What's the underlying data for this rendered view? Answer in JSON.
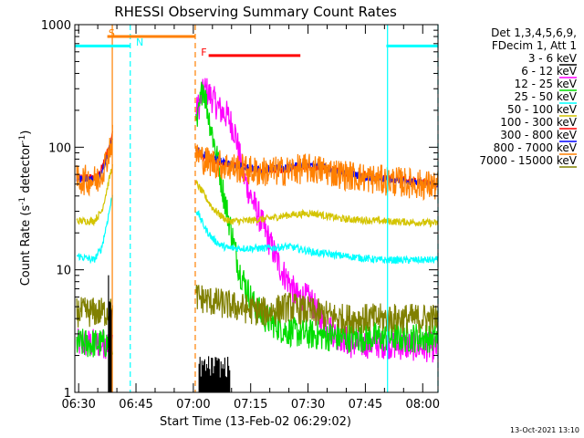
{
  "chart_data": {
    "type": "line",
    "title": "RHESSI Observing Summary Count Rates",
    "xlabel": "Start Time (13-Feb-02 06:29:02)",
    "ylabel": "Count Rate (s",
    "ylabel_sup1": "-1",
    "ylabel_mid": " detector",
    "ylabel_sup2": "-1",
    "ylabel_end": ")",
    "x_unit": "minutes after 06:29:02",
    "y_scale": "log",
    "xlim": [
      0,
      95
    ],
    "ylim": [
      1,
      1000
    ],
    "x_ticks": [
      {
        "value": 1,
        "label": "06:30"
      },
      {
        "value": 16,
        "label": "06:45"
      },
      {
        "value": 31,
        "label": "07:00"
      },
      {
        "value": 46,
        "label": "07:15"
      },
      {
        "value": 61,
        "label": "07:30"
      },
      {
        "value": 76,
        "label": "07:45"
      },
      {
        "value": 91,
        "label": "08:00"
      }
    ],
    "y_ticks": [
      {
        "value": 1,
        "label": "1"
      },
      {
        "value": 10,
        "label": "10"
      },
      {
        "value": 100,
        "label": "100"
      },
      {
        "value": 1000,
        "label": "1000"
      }
    ],
    "legend": {
      "header1": "Det 1,3,4,5,6,9,",
      "header2": "FDecim 1, Att 1",
      "placement": "right",
      "entries": [
        {
          "label": "3 - 6 keV",
          "color": "#000000"
        },
        {
          "label": "6 - 12 keV",
          "color": "#ff00ff"
        },
        {
          "label": "12 - 25 keV",
          "color": "#00dd00"
        },
        {
          "label": "25 - 50 keV",
          "color": "#00ffff"
        },
        {
          "label": "50 - 100 keV",
          "color": "#d4c400"
        },
        {
          "label": "100 - 300 keV",
          "color": "#ff0000"
        },
        {
          "label": "300 - 800 keV",
          "color": "#0000ff"
        },
        {
          "label": "800 - 7000 keV",
          "color": "#ff8000"
        },
        {
          "label": "7000 - 15000 keV",
          "color": "#808000"
        }
      ]
    },
    "flags": [
      {
        "label": "S",
        "color": "#ff8000",
        "x_start": 8.5,
        "x_end": 31.5,
        "y": 800
      },
      {
        "label": "N",
        "color": "#00ffff",
        "x_start": 0,
        "x_end": 14.5,
        "y": 670
      },
      {
        "label": "N",
        "color": "#00ffff",
        "x_start": 81.5,
        "x_end": 95,
        "y": 670
      },
      {
        "label": "F",
        "color": "#ff0000",
        "x_start": 35,
        "x_end": 59,
        "y": 560
      }
    ],
    "flag_text": {
      "s": "S",
      "n": "N",
      "f": "F"
    },
    "vlines": [
      {
        "x": 9.8,
        "color": "#ff8000",
        "style": "solid"
      },
      {
        "x": 31.5,
        "color": "#ff8000",
        "style": "dashed"
      },
      {
        "x": 14.5,
        "color": "#00ffff",
        "style": "dashed"
      },
      {
        "x": 81.8,
        "color": "#00ffff",
        "style": "solid"
      },
      {
        "x": 95,
        "color": "#00ffff",
        "style": "dashed"
      }
    ],
    "series": [
      {
        "name": "6 - 12 keV",
        "color": "#ff00ff",
        "points": [
          [
            0.5,
            2.5
          ],
          [
            9.5,
            2.5
          ],
          [
            32,
            200
          ],
          [
            34,
            300
          ],
          [
            36,
            250
          ],
          [
            38,
            200
          ],
          [
            40,
            180
          ],
          [
            42,
            130
          ],
          [
            44,
            60
          ],
          [
            46,
            40
          ],
          [
            48,
            28
          ],
          [
            50,
            20
          ],
          [
            52,
            14
          ],
          [
            54,
            10
          ],
          [
            56,
            8
          ],
          [
            58,
            6
          ],
          [
            60,
            6
          ],
          [
            62,
            5.5
          ],
          [
            64,
            4
          ],
          [
            66,
            3.5
          ],
          [
            68,
            3
          ],
          [
            70,
            2.8
          ],
          [
            72,
            2.5
          ],
          [
            80,
            2.5
          ],
          [
            95,
            2.3
          ]
        ]
      },
      {
        "name": "12 - 25 keV",
        "color": "#00dd00",
        "points": [
          [
            0.5,
            2.5
          ],
          [
            9.5,
            2.5
          ],
          [
            32,
            150
          ],
          [
            33.5,
            330
          ],
          [
            35,
            180
          ],
          [
            37,
            90
          ],
          [
            39,
            40
          ],
          [
            41,
            20
          ],
          [
            43,
            10
          ],
          [
            45,
            7
          ],
          [
            47,
            5
          ],
          [
            50,
            4
          ],
          [
            55,
            3.2
          ],
          [
            60,
            3
          ],
          [
            70,
            2.8
          ],
          [
            95,
            2.8
          ]
        ]
      },
      {
        "name": "50 - 100 keV",
        "color": "#d4c400",
        "points": [
          [
            0.5,
            25
          ],
          [
            5,
            25
          ],
          [
            7,
            30
          ],
          [
            8,
            40
          ],
          [
            9,
            55
          ],
          [
            9.8,
            70
          ],
          [
            32,
            50
          ],
          [
            34,
            40
          ],
          [
            36,
            32
          ],
          [
            38,
            28
          ],
          [
            40,
            25
          ],
          [
            44,
            25
          ],
          [
            50,
            26
          ],
          [
            56,
            28
          ],
          [
            62,
            29
          ],
          [
            70,
            26
          ],
          [
            80,
            25
          ],
          [
            95,
            24
          ]
        ]
      },
      {
        "name": "25 - 50 keV",
        "color": "#00ffff",
        "points": [
          [
            0.5,
            13
          ],
          [
            5,
            12
          ],
          [
            7,
            15
          ],
          [
            8.5,
            25
          ],
          [
            9.8,
            40
          ],
          [
            32,
            30
          ],
          [
            34,
            22
          ],
          [
            36,
            18
          ],
          [
            38,
            16
          ],
          [
            40,
            15
          ],
          [
            44,
            15
          ],
          [
            50,
            15
          ],
          [
            56,
            15.5
          ],
          [
            62,
            14
          ],
          [
            70,
            13
          ],
          [
            80,
            12
          ],
          [
            95,
            12
          ]
        ]
      },
      {
        "name": "7000 - 15000 keV",
        "color": "#808000",
        "points": [
          [
            0.5,
            4.5
          ],
          [
            9.5,
            4.5
          ],
          [
            32,
            6
          ],
          [
            36,
            5.5
          ],
          [
            42,
            5
          ],
          [
            50,
            4.5
          ],
          [
            56,
            5
          ],
          [
            62,
            4.5
          ],
          [
            70,
            4
          ],
          [
            80,
            4
          ],
          [
            95,
            4
          ]
        ]
      },
      {
        "name": "100 - 300 keV",
        "color": "#ff0000",
        "points": [
          [
            0.5,
            57
          ],
          [
            6,
            57
          ],
          [
            8,
            80
          ],
          [
            9.8,
            130
          ],
          [
            32,
            90
          ],
          [
            34,
            80
          ],
          [
            38,
            75
          ],
          [
            42,
            72
          ],
          [
            48,
            65
          ],
          [
            55,
            66
          ],
          [
            60,
            70
          ],
          [
            65,
            68
          ],
          [
            70,
            62
          ],
          [
            78,
            57
          ],
          [
            95,
            50
          ]
        ]
      },
      {
        "name": "300 - 800 keV",
        "color": "#0000ff",
        "points": [
          [
            0.5,
            55
          ],
          [
            6,
            55
          ],
          [
            8,
            75
          ],
          [
            9.8,
            120
          ],
          [
            32,
            95
          ],
          [
            34,
            85
          ],
          [
            38,
            78
          ],
          [
            42,
            72
          ],
          [
            48,
            66
          ],
          [
            55,
            68
          ],
          [
            60,
            72
          ],
          [
            65,
            69
          ],
          [
            70,
            62
          ],
          [
            78,
            56
          ],
          [
            95,
            50
          ]
        ]
      },
      {
        "name": "800 - 7000 keV",
        "color": "#ff8000",
        "points": [
          [
            0.5,
            54
          ],
          [
            6,
            54
          ],
          [
            8,
            74
          ],
          [
            9.8,
            118
          ],
          [
            32,
            88
          ],
          [
            34,
            78
          ],
          [
            38,
            72
          ],
          [
            42,
            68
          ],
          [
            48,
            63
          ],
          [
            55,
            64
          ],
          [
            60,
            67
          ],
          [
            65,
            65
          ],
          [
            70,
            60
          ],
          [
            78,
            55
          ],
          [
            95,
            48
          ]
        ]
      }
    ],
    "bursts_3_6_keV": [
      {
        "x_start": 8.8,
        "x_end": 9.6,
        "y_low": 1,
        "y_high": 10
      },
      {
        "x_start": 32.5,
        "x_end": 40.5,
        "y_low": 1,
        "y_high": 2
      }
    ],
    "timestamp": "13-Oct-2021 13:10"
  }
}
